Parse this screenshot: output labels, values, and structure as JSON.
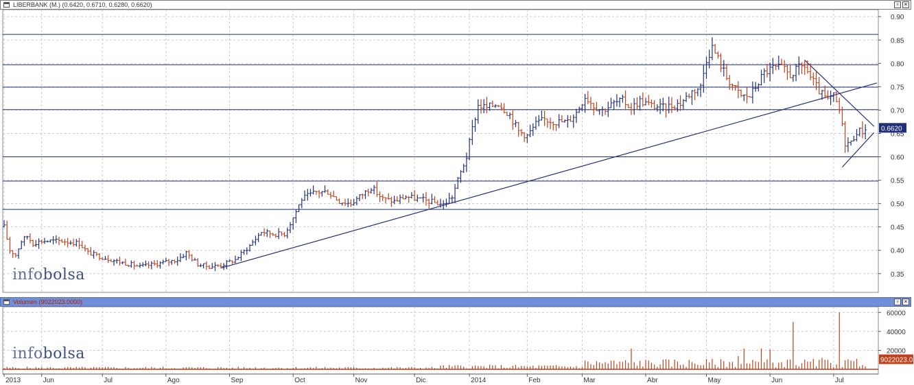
{
  "price_panel": {
    "title": "LIBERBANK (M.) (0.6420, 0.6710, 0.6280, 0.6620)",
    "last_price_label": "0.6620",
    "watermark": "infobolsa"
  },
  "volume_panel": {
    "title": "Volumen (9022023.0000)",
    "last_volume_label": "9022023.0",
    "watermark": "infobolsa"
  },
  "colors": {
    "up_bar": "#1f2f7a",
    "down_bar": "#c0401a",
    "volume_bar": "#c0401a",
    "trend_line": "#1f2f7a",
    "level_line": "#1f2f7a",
    "grid": "#c8c8c8",
    "blue_titlebar": "#6f8fd8",
    "label_bg": "#1f2f7a",
    "volume_label_bg": "#c0401a"
  },
  "chart_data": [
    {
      "type": "ohlc",
      "title": "LIBERBANK (M.) (0.6420, 0.6710, 0.6280, 0.6620)",
      "x_ticks": [
        "2013",
        "Jun",
        "Jul",
        "Ago",
        "Sep",
        "Oct",
        "Nov",
        "Dic",
        "2014",
        "Feb",
        "Mar",
        "Abr",
        "May",
        "Jun",
        "Jul"
      ],
      "x_tick_positions": [
        0,
        13,
        34,
        56,
        78,
        100,
        121,
        142,
        161,
        181,
        200,
        222,
        243,
        265,
        287
      ],
      "x_range": [
        0,
        302
      ],
      "y_ticks": [
        0.35,
        0.4,
        0.45,
        0.5,
        0.55,
        0.6,
        0.65,
        0.7,
        0.75,
        0.8,
        0.85,
        0.9
      ],
      "ylim": [
        0.31,
        0.915
      ],
      "grid": true,
      "horizontal_levels": [
        0.4875,
        0.548,
        0.6,
        0.701,
        0.749,
        0.797,
        0.862
      ],
      "trend_lines": [
        {
          "x1": 75,
          "y1": 0.362,
          "x2": 302,
          "y2": 0.758
        },
        {
          "x1": 277,
          "y1": 0.807,
          "x2": 301,
          "y2": 0.665
        },
        {
          "x1": 290,
          "y1": 0.578,
          "x2": 301,
          "y2": 0.652
        }
      ],
      "last_price": 0.662,
      "anchors": [
        [
          0,
          0.45
        ],
        [
          2,
          0.4
        ],
        [
          4,
          0.39
        ],
        [
          6,
          0.42
        ],
        [
          8,
          0.43
        ],
        [
          10,
          0.415
        ],
        [
          13,
          0.42
        ],
        [
          20,
          0.42
        ],
        [
          26,
          0.415
        ],
        [
          29,
          0.395
        ],
        [
          34,
          0.385
        ],
        [
          40,
          0.375
        ],
        [
          47,
          0.365
        ],
        [
          52,
          0.37
        ],
        [
          56,
          0.375
        ],
        [
          60,
          0.38
        ],
        [
          63,
          0.395
        ],
        [
          67,
          0.37
        ],
        [
          71,
          0.365
        ],
        [
          75,
          0.368
        ],
        [
          80,
          0.38
        ],
        [
          85,
          0.41
        ],
        [
          89,
          0.44
        ],
        [
          93,
          0.435
        ],
        [
          97,
          0.435
        ],
        [
          100,
          0.47
        ],
        [
          103,
          0.51
        ],
        [
          108,
          0.525
        ],
        [
          112,
          0.525
        ],
        [
          116,
          0.505
        ],
        [
          120,
          0.5
        ],
        [
          124,
          0.52
        ],
        [
          127,
          0.535
        ],
        [
          131,
          0.51
        ],
        [
          135,
          0.505
        ],
        [
          139,
          0.515
        ],
        [
          143,
          0.51
        ],
        [
          147,
          0.505
        ],
        [
          152,
          0.498
        ],
        [
          155,
          0.515
        ],
        [
          157,
          0.55
        ],
        [
          160,
          0.6
        ],
        [
          162,
          0.66
        ],
        [
          164,
          0.71
        ],
        [
          167,
          0.705
        ],
        [
          171,
          0.715
        ],
        [
          175,
          0.69
        ],
        [
          178,
          0.655
        ],
        [
          181,
          0.645
        ],
        [
          184,
          0.67
        ],
        [
          187,
          0.68
        ],
        [
          191,
          0.675
        ],
        [
          195,
          0.675
        ],
        [
          198,
          0.695
        ],
        [
          201,
          0.73
        ],
        [
          204,
          0.71
        ],
        [
          207,
          0.7
        ],
        [
          211,
          0.715
        ],
        [
          214,
          0.72
        ],
        [
          217,
          0.705
        ],
        [
          220,
          0.72
        ],
        [
          224,
          0.71
        ],
        [
          228,
          0.705
        ],
        [
          231,
          0.71
        ],
        [
          234,
          0.715
        ],
        [
          238,
          0.74
        ],
        [
          241,
          0.75
        ],
        [
          243,
          0.81
        ],
        [
          245,
          0.835
        ],
        [
          247,
          0.81
        ],
        [
          250,
          0.77
        ],
        [
          253,
          0.745
        ],
        [
          255,
          0.73
        ],
        [
          258,
          0.73
        ],
        [
          260,
          0.75
        ],
        [
          263,
          0.78
        ],
        [
          266,
          0.79
        ],
        [
          269,
          0.79
        ],
        [
          272,
          0.775
        ],
        [
          275,
          0.79
        ],
        [
          277,
          0.795
        ],
        [
          279,
          0.77
        ],
        [
          282,
          0.74
        ],
        [
          285,
          0.72
        ],
        [
          287,
          0.73
        ],
        [
          289,
          0.7
        ],
        [
          291,
          0.63
        ],
        [
          293,
          0.63
        ],
        [
          295,
          0.655
        ],
        [
          297,
          0.655
        ],
        [
          298,
          0.662
        ]
      ]
    },
    {
      "type": "bar",
      "title": "Volumen (9022023.0000)",
      "y_ticks": [
        20000,
        40000,
        60000
      ],
      "ylim": [
        -5000,
        66000
      ],
      "x_range": [
        0,
        302
      ],
      "grid": true,
      "last_volume": 9022023,
      "spikes": [
        [
          217,
          22000
        ],
        [
          254,
          14000
        ],
        [
          256,
          22000
        ],
        [
          259,
          10000
        ],
        [
          262,
          22000
        ],
        [
          265,
          21000
        ],
        [
          271,
          10000
        ],
        [
          273,
          50000
        ],
        [
          283,
          12000
        ],
        [
          289,
          60000
        ],
        [
          295,
          11000
        ]
      ]
    }
  ]
}
